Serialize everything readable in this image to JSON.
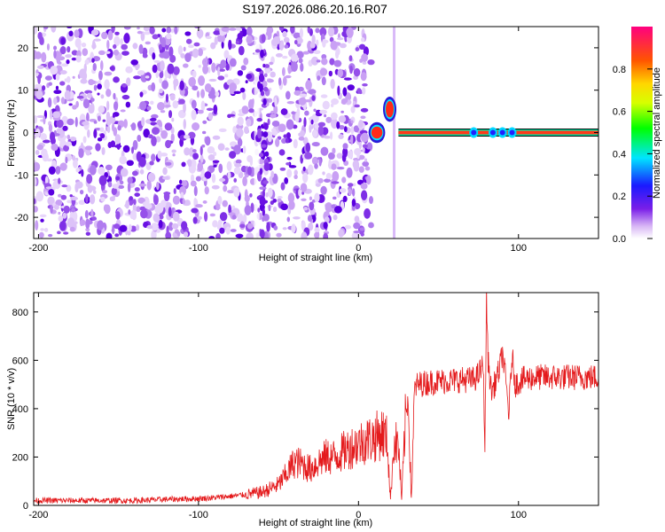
{
  "title": "S197.2026.086.20.16.R07",
  "chart_data": [
    {
      "type": "heatmap",
      "name": "spectrogram",
      "xlabel": "Height of straight line (km)",
      "ylabel": "Frequency (Hz)",
      "xlim": [
        -203,
        150
      ],
      "ylim": [
        -25,
        25
      ],
      "xticks": [
        -200,
        -100,
        0,
        100
      ],
      "yticks": [
        -20,
        -10,
        0,
        10,
        20
      ],
      "colorbar": {
        "label": "Normalized spectral amplitude",
        "range": [
          0,
          1
        ],
        "ticks": [
          0.0,
          0.2,
          0.4,
          0.6,
          0.8
        ]
      },
      "regions": [
        {
          "x_from": -203,
          "x_to": 8,
          "freq_from": -25,
          "freq_to": 25,
          "amplitude": "0.0-0.2",
          "pattern": "broadband noise"
        },
        {
          "x_from": -63,
          "x_to": -57,
          "freq_from": -25,
          "freq_to": 25,
          "amplitude": "0.2",
          "pattern": "vertical stripe"
        },
        {
          "x_from": 8,
          "x_to": 15,
          "freq_from": -1,
          "freq_to": 1,
          "amplitude": "0.9",
          "pattern": "narrow peak"
        },
        {
          "x_from": 17,
          "x_to": 22,
          "freq_from": 4,
          "freq_to": 7,
          "amplitude": "0.9",
          "pattern": "offset peak"
        },
        {
          "x_from": 25,
          "x_to": 150,
          "freq_from": -1,
          "freq_to": 1,
          "amplitude": "0.9-1.0",
          "pattern": "carrier line"
        }
      ]
    },
    {
      "type": "line",
      "name": "snr",
      "xlabel": "Height of straight line (km)",
      "ylabel": "SNR (10 * v/v)",
      "xlim": [
        -203,
        150
      ],
      "ylim": [
        0,
        880
      ],
      "xticks": [
        -200,
        -100,
        0,
        100
      ],
      "yticks": [
        0,
        200,
        400,
        600,
        800
      ],
      "series": [
        {
          "name": "SNR",
          "color": "#e41a1c",
          "points": [
            [
              -203,
              20
            ],
            [
              -180,
              20
            ],
            [
              -160,
              20
            ],
            [
              -140,
              20
            ],
            [
              -120,
              25
            ],
            [
              -100,
              28
            ],
            [
              -90,
              32
            ],
            [
              -80,
              38
            ],
            [
              -70,
              45
            ],
            [
              -60,
              55
            ],
            [
              -50,
              85
            ],
            [
              -45,
              130
            ],
            [
              -40,
              180
            ],
            [
              -35,
              170
            ],
            [
              -30,
              150
            ],
            [
              -25,
              180
            ],
            [
              -20,
              200
            ],
            [
              -15,
              200
            ],
            [
              -10,
              220
            ],
            [
              -5,
              240
            ],
            [
              0,
              255
            ],
            [
              5,
              270
            ],
            [
              10,
              280
            ],
            [
              15,
              300
            ],
            [
              18,
              270
            ],
            [
              20,
              20
            ],
            [
              22,
              260
            ],
            [
              25,
              250
            ],
            [
              27,
              20
            ],
            [
              29,
              320
            ],
            [
              31,
              450
            ],
            [
              33,
              20
            ],
            [
              35,
              480
            ],
            [
              37,
              500
            ],
            [
              45,
              510
            ],
            [
              55,
              515
            ],
            [
              65,
              520
            ],
            [
              72,
              520
            ],
            [
              75,
              540
            ],
            [
              78,
              580
            ],
            [
              79,
              230
            ],
            [
              80,
              860
            ],
            [
              81,
              600
            ],
            [
              83,
              470
            ],
            [
              85,
              500
            ],
            [
              88,
              560
            ],
            [
              90,
              630
            ],
            [
              92,
              520
            ],
            [
              94,
              380
            ],
            [
              96,
              620
            ],
            [
              98,
              500
            ],
            [
              102,
              520
            ],
            [
              110,
              530
            ],
            [
              120,
              530
            ],
            [
              130,
              530
            ],
            [
              140,
              530
            ],
            [
              150,
              530
            ]
          ]
        }
      ]
    }
  ]
}
